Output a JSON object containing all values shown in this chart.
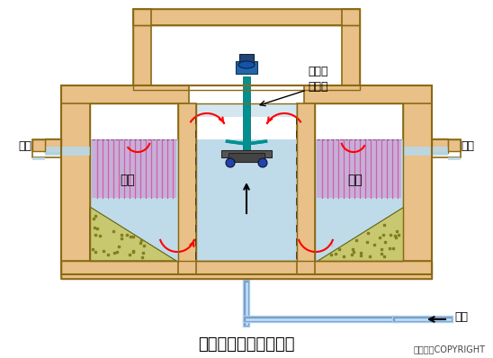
{
  "bg_color": "#ffffff",
  "tan": "#E8C088",
  "tan_edge": "#8B6914",
  "water": "#B8D8E8",
  "fill_bg": "#C8A8D8",
  "fill_line": "#D060A0",
  "gravel_bg": "#C8C870",
  "gravel_dot": "#808020",
  "teal": "#009090",
  "teal_dark": "#006060",
  "blue_pipe": "#88BBDD",
  "pipe_edge": "#4488AA",
  "red": "#EE2222",
  "title": "接触氧化池基本构造图",
  "copyright": "东方仿真COPYRIGHT",
  "lbl_aerate": "表面曝\n气装置",
  "lbl_fill": "填料",
  "lbl_out": "出流",
  "lbl_inflow": "原水"
}
